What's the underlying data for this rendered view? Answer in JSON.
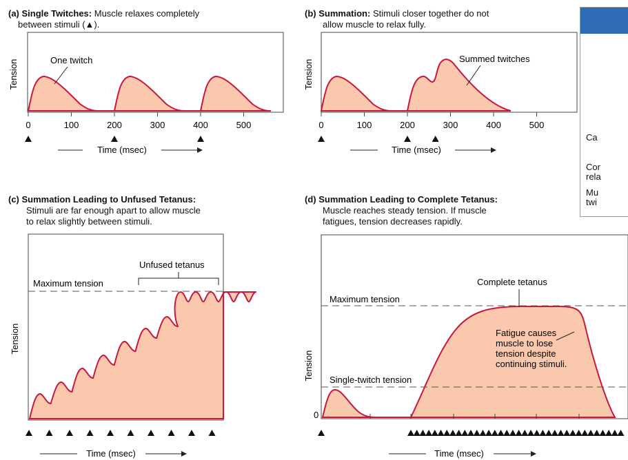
{
  "colors": {
    "curve": "#c8163c",
    "fill": "#f9c8ad",
    "frame": "#444444",
    "dash": "#555555",
    "panel_header": "#2e6db4"
  },
  "panels": {
    "a": {
      "title_bold": "(a) Single Twitches:",
      "title_rest": "Muscle relaxes completely",
      "title_line2": "between stimuli (▲).",
      "ylabel": "Tension",
      "xlabel": "Time (msec)",
      "annotation": "One twitch"
    },
    "b": {
      "title_bold": "(b) Summation:",
      "title_rest": "Stimuli closer together do not",
      "title_line2": "allow muscle to relax fully.",
      "ylabel": "Tension",
      "xlabel": "Time (msec)",
      "annotation": "Summed twitches"
    },
    "c": {
      "title_bold": "(c) Summation Leading to Unfused Tetanus:",
      "title_line2": "Stimuli are far enough apart to allow muscle",
      "title_line3": "to relax slightly between stimuli.",
      "ylabel": "Tension",
      "xlabel": "Time (msec)",
      "max_label": "Maximum tension",
      "annotation": "Unfused tetanus"
    },
    "d": {
      "title_bold": "(d) Summation Leading to Complete Tetanus:",
      "title_line2": "Muscle reaches steady tension. If muscle",
      "title_line3": "fatigues, tension decreases rapidly.",
      "ylabel": "Tension",
      "xlabel": "Time (msec)",
      "max_label": "Maximum tension",
      "single_label": "Single-twitch tension",
      "annotation": "Complete tetanus",
      "fatigue_note": [
        "Fatigue causes",
        "muscle to lose",
        "tension despite",
        "continuing stimuli."
      ],
      "zero_label": "0"
    }
  },
  "side_panel": {
    "rows": [
      "Ca",
      "Cor",
      "rela",
      "Mu",
      "twi"
    ]
  },
  "chart_data": [
    {
      "type": "line",
      "panel": "a",
      "xlabel": "Time (msec)",
      "ylabel": "Tension",
      "xlim": [
        0,
        560
      ],
      "xticks": [
        0,
        100,
        200,
        300,
        400,
        500
      ],
      "stimuli": [
        0,
        200,
        400
      ],
      "twitch_peaks_x": [
        35,
        235,
        435
      ],
      "grid": false
    },
    {
      "type": "line",
      "panel": "b",
      "xlabel": "Time (msec)",
      "ylabel": "Tension",
      "xlim": [
        0,
        560
      ],
      "xticks": [
        0,
        100,
        200,
        300,
        400,
        500
      ],
      "stimuli": [
        0,
        200,
        265
      ],
      "grid": false
    },
    {
      "type": "line",
      "panel": "c",
      "xlabel": "Time (msec)",
      "ylabel": "Tension",
      "stimulus_count": 10,
      "grid": false
    },
    {
      "type": "line",
      "panel": "d",
      "xlabel": "Time (msec)",
      "ylabel": "Tension",
      "stimulus_count": 37,
      "grid": false
    }
  ]
}
